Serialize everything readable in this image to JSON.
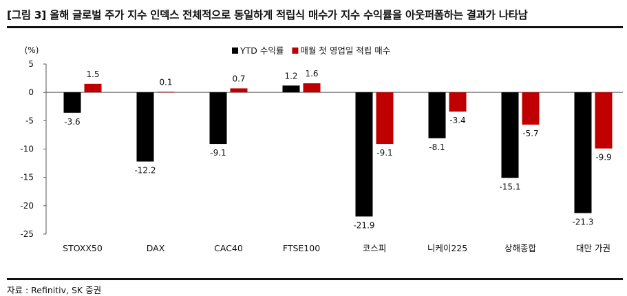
{
  "figure": {
    "title": "[그림 3] 올해 글로벌 주가 지수 인덱스 전체적으로 동일하게 적립식 매수가 지수 수익률을 아웃퍼폼하는 결과가 나타남",
    "source": "자료 : Refinitiv, SK 증권"
  },
  "chart_data": {
    "type": "bar",
    "title": "",
    "ylabel": "(%)",
    "xlabel": "",
    "ylim": [
      -25,
      5
    ],
    "yticks": [
      5,
      0,
      -5,
      -10,
      -15,
      -20,
      -25
    ],
    "grid": false,
    "legend_position": "top",
    "categories": [
      "STOXX50",
      "DAX",
      "CAC40",
      "FTSE100",
      "코스피",
      "니케이225",
      "상해종합",
      "대만 가권"
    ],
    "series": [
      {
        "name": "YTD 수익률",
        "color": "#000000",
        "values": [
          -3.6,
          -12.2,
          -9.1,
          1.2,
          -21.9,
          -8.1,
          -15.1,
          -21.3
        ]
      },
      {
        "name": "매월 첫 영업일 적립 매수",
        "color": "#c00000",
        "values": [
          1.5,
          0.1,
          0.7,
          1.6,
          -9.1,
          -3.4,
          -5.7,
          -9.9
        ]
      }
    ]
  }
}
